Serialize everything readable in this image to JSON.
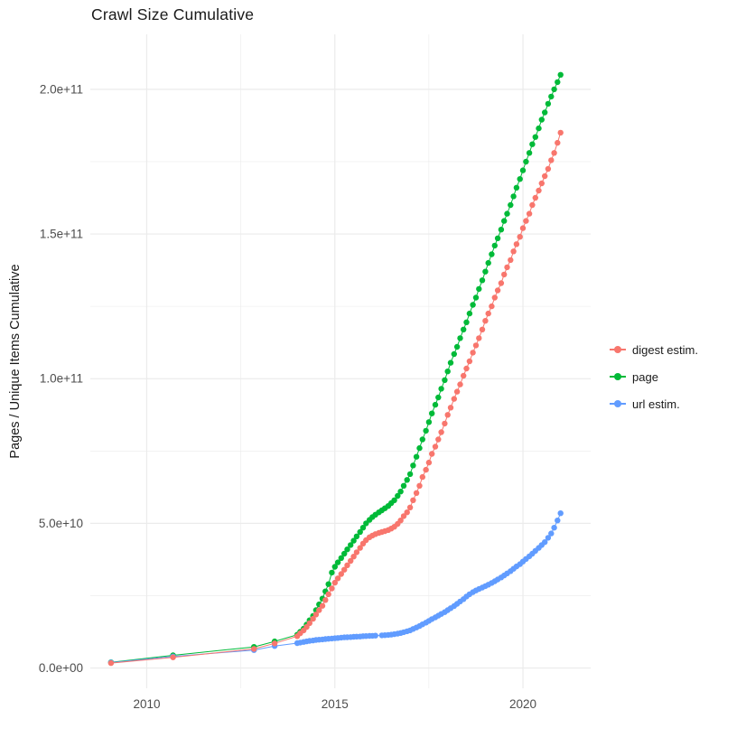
{
  "title": "Crawl Size Cumulative",
  "axes": {
    "y_label": "Pages / Unique Items Cumulative",
    "x_tick_color": "#4d4d4d",
    "grid_color": "#ebebeb"
  },
  "legend": {
    "items": [
      {
        "label": "digest estim.",
        "color": "#F8766D"
      },
      {
        "label": "page",
        "color": "#00BA38"
      },
      {
        "label": "url estim.",
        "color": "#619CFF"
      }
    ]
  },
  "chart_data": {
    "type": "scatter",
    "lines": true,
    "title": "Crawl Size Cumulative",
    "xlabel": "",
    "ylabel": "Pages / Unique Items Cumulative",
    "legend_position": "right",
    "grid": true,
    "y_unit_note": "y values stored in billions (1e9 items)",
    "x_domain": [
      2008.5,
      2021.8
    ],
    "y_domain_e9": [
      -7,
      219
    ],
    "x_ticks": [
      {
        "v": 2010,
        "label": "2010"
      },
      {
        "v": 2015,
        "label": "2015"
      },
      {
        "v": 2020,
        "label": "2020"
      }
    ],
    "x_minor": [
      2012.5,
      2017.5
    ],
    "y_ticks": [
      {
        "v": 0,
        "label": "0.0e+00"
      },
      {
        "v": 50,
        "label": "5.0e+10"
      },
      {
        "v": 100,
        "label": "1.0e+11"
      },
      {
        "v": 150,
        "label": "1.5e+11"
      },
      {
        "v": 200,
        "label": "2.0e+11"
      }
    ],
    "y_minor_e9": [
      25,
      75,
      125,
      175
    ],
    "series": [
      {
        "name": "page",
        "color": "#00BA38",
        "points_e9": [
          [
            2009.05,
            2.0
          ],
          [
            2010.7,
            4.4
          ],
          [
            2012.85,
            7.3
          ],
          [
            2013.4,
            9.2
          ],
          [
            2014.0,
            11.5
          ],
          [
            2014.08,
            12.5
          ],
          [
            2014.17,
            13.6
          ],
          [
            2014.25,
            15.0
          ],
          [
            2014.33,
            16.5
          ],
          [
            2014.42,
            18.0
          ],
          [
            2014.5,
            20.0
          ],
          [
            2014.58,
            22.0
          ],
          [
            2014.67,
            24.0
          ],
          [
            2014.75,
            26.5
          ],
          [
            2014.83,
            29.0
          ],
          [
            2014.92,
            33.0
          ],
          [
            2015.0,
            35.0
          ],
          [
            2015.08,
            36.5
          ],
          [
            2015.17,
            38.0
          ],
          [
            2015.25,
            39.5
          ],
          [
            2015.33,
            41.0
          ],
          [
            2015.42,
            42.5
          ],
          [
            2015.5,
            44.0
          ],
          [
            2015.58,
            45.5
          ],
          [
            2015.67,
            47.0
          ],
          [
            2015.75,
            48.5
          ],
          [
            2015.83,
            50.0
          ],
          [
            2015.92,
            51.2
          ],
          [
            2016.0,
            52.2
          ],
          [
            2016.08,
            53.0
          ],
          [
            2016.17,
            53.8
          ],
          [
            2016.25,
            54.5
          ],
          [
            2016.33,
            55.2
          ],
          [
            2016.42,
            56.0
          ],
          [
            2016.5,
            57.0
          ],
          [
            2016.58,
            58.0
          ],
          [
            2016.67,
            59.5
          ],
          [
            2016.75,
            61.0
          ],
          [
            2016.83,
            63.0
          ],
          [
            2016.92,
            65.0
          ],
          [
            2017.0,
            67.0
          ],
          [
            2017.08,
            70.0
          ],
          [
            2017.17,
            73.0
          ],
          [
            2017.25,
            76.0
          ],
          [
            2017.33,
            79.0
          ],
          [
            2017.42,
            82.0
          ],
          [
            2017.5,
            85.0
          ],
          [
            2017.58,
            88.0
          ],
          [
            2017.67,
            91.0
          ],
          [
            2017.75,
            93.5
          ],
          [
            2017.83,
            96.5
          ],
          [
            2017.92,
            99.5
          ],
          [
            2018.0,
            102.5
          ],
          [
            2018.08,
            105.5
          ],
          [
            2018.17,
            108.5
          ],
          [
            2018.25,
            111.0
          ],
          [
            2018.33,
            114.0
          ],
          [
            2018.42,
            117.0
          ],
          [
            2018.5,
            119.5
          ],
          [
            2018.58,
            122.5
          ],
          [
            2018.67,
            125.5
          ],
          [
            2018.75,
            128.0
          ],
          [
            2018.83,
            131.0
          ],
          [
            2018.92,
            134.0
          ],
          [
            2019.0,
            137.0
          ],
          [
            2019.08,
            140.0
          ],
          [
            2019.17,
            143.0
          ],
          [
            2019.25,
            146.0
          ],
          [
            2019.33,
            148.5
          ],
          [
            2019.42,
            151.5
          ],
          [
            2019.5,
            154.5
          ],
          [
            2019.58,
            157.0
          ],
          [
            2019.67,
            160.0
          ],
          [
            2019.75,
            163.0
          ],
          [
            2019.83,
            166.0
          ],
          [
            2019.92,
            169.0
          ],
          [
            2020.0,
            172.0
          ],
          [
            2020.08,
            175.0
          ],
          [
            2020.17,
            178.0
          ],
          [
            2020.25,
            181.0
          ],
          [
            2020.33,
            183.5
          ],
          [
            2020.42,
            186.5
          ],
          [
            2020.5,
            189.5
          ],
          [
            2020.58,
            192.0
          ],
          [
            2020.67,
            195.0
          ],
          [
            2020.75,
            197.5
          ],
          [
            2020.83,
            200.0
          ],
          [
            2020.92,
            202.5
          ],
          [
            2021.0,
            205.0
          ]
        ]
      },
      {
        "name": "url estim.",
        "color": "#619CFF",
        "points_e9": [
          [
            2009.05,
            1.9
          ],
          [
            2010.7,
            4.0
          ],
          [
            2012.85,
            6.2
          ],
          [
            2013.4,
            7.6
          ],
          [
            2014.0,
            8.6
          ],
          [
            2014.08,
            8.8
          ],
          [
            2014.17,
            9.0
          ],
          [
            2014.25,
            9.2
          ],
          [
            2014.33,
            9.4
          ],
          [
            2014.42,
            9.5
          ],
          [
            2014.5,
            9.7
          ],
          [
            2014.58,
            9.8
          ],
          [
            2014.67,
            9.9
          ],
          [
            2014.75,
            10.0
          ],
          [
            2014.83,
            10.1
          ],
          [
            2014.92,
            10.2
          ],
          [
            2015.0,
            10.3
          ],
          [
            2015.08,
            10.4
          ],
          [
            2015.17,
            10.5
          ],
          [
            2015.25,
            10.6
          ],
          [
            2015.33,
            10.65
          ],
          [
            2015.42,
            10.7
          ],
          [
            2015.5,
            10.8
          ],
          [
            2015.58,
            10.85
          ],
          [
            2015.67,
            10.9
          ],
          [
            2015.75,
            11.0
          ],
          [
            2015.83,
            11.05
          ],
          [
            2015.92,
            11.1
          ],
          [
            2016.0,
            11.15
          ],
          [
            2016.08,
            11.2
          ],
          [
            2016.25,
            11.3
          ],
          [
            2016.33,
            11.35
          ],
          [
            2016.42,
            11.45
          ],
          [
            2016.5,
            11.55
          ],
          [
            2016.58,
            11.7
          ],
          [
            2016.67,
            11.9
          ],
          [
            2016.75,
            12.1
          ],
          [
            2016.83,
            12.4
          ],
          [
            2016.92,
            12.7
          ],
          [
            2017.0,
            13.0
          ],
          [
            2017.08,
            13.5
          ],
          [
            2017.17,
            14.0
          ],
          [
            2017.25,
            14.5
          ],
          [
            2017.33,
            15.1
          ],
          [
            2017.42,
            15.7
          ],
          [
            2017.5,
            16.3
          ],
          [
            2017.58,
            16.9
          ],
          [
            2017.67,
            17.5
          ],
          [
            2017.75,
            18.1
          ],
          [
            2017.83,
            18.7
          ],
          [
            2017.92,
            19.3
          ],
          [
            2018.0,
            20.0
          ],
          [
            2018.08,
            20.7
          ],
          [
            2018.17,
            21.4
          ],
          [
            2018.25,
            22.2
          ],
          [
            2018.33,
            23.0
          ],
          [
            2018.42,
            23.8
          ],
          [
            2018.5,
            24.7
          ],
          [
            2018.58,
            25.5
          ],
          [
            2018.67,
            26.2
          ],
          [
            2018.75,
            26.8
          ],
          [
            2018.83,
            27.3
          ],
          [
            2018.92,
            27.8
          ],
          [
            2019.0,
            28.3
          ],
          [
            2019.08,
            28.8
          ],
          [
            2019.17,
            29.4
          ],
          [
            2019.25,
            30.0
          ],
          [
            2019.33,
            30.6
          ],
          [
            2019.42,
            31.3
          ],
          [
            2019.5,
            32.0
          ],
          [
            2019.58,
            32.7
          ],
          [
            2019.67,
            33.5
          ],
          [
            2019.75,
            34.3
          ],
          [
            2019.83,
            35.1
          ],
          [
            2019.92,
            35.9
          ],
          [
            2020.0,
            36.8
          ],
          [
            2020.08,
            37.7
          ],
          [
            2020.17,
            38.6
          ],
          [
            2020.25,
            39.5
          ],
          [
            2020.33,
            40.5
          ],
          [
            2020.42,
            41.5
          ],
          [
            2020.5,
            42.5
          ],
          [
            2020.58,
            43.5
          ],
          [
            2020.67,
            45.0
          ],
          [
            2020.75,
            46.5
          ],
          [
            2020.83,
            48.5
          ],
          [
            2020.92,
            51.0
          ],
          [
            2021.0,
            53.5
          ]
        ]
      },
      {
        "name": "digest estim.",
        "color": "#F8766D",
        "points_e9": [
          [
            2009.05,
            1.7
          ],
          [
            2010.7,
            3.7
          ],
          [
            2012.85,
            6.6
          ],
          [
            2013.4,
            8.5
          ],
          [
            2014.0,
            11.0
          ],
          [
            2014.08,
            12.0
          ],
          [
            2014.17,
            13.0
          ],
          [
            2014.25,
            14.2
          ],
          [
            2014.33,
            15.5
          ],
          [
            2014.42,
            17.0
          ],
          [
            2014.5,
            18.5
          ],
          [
            2014.58,
            20.0
          ],
          [
            2014.67,
            21.5
          ],
          [
            2014.75,
            23.5
          ],
          [
            2014.83,
            25.5
          ],
          [
            2014.92,
            27.5
          ],
          [
            2015.0,
            29.5
          ],
          [
            2015.08,
            31.0
          ],
          [
            2015.17,
            32.5
          ],
          [
            2015.25,
            34.0
          ],
          [
            2015.33,
            35.5
          ],
          [
            2015.42,
            37.0
          ],
          [
            2015.5,
            38.5
          ],
          [
            2015.58,
            40.0
          ],
          [
            2015.67,
            41.5
          ],
          [
            2015.75,
            43.0
          ],
          [
            2015.83,
            44.2
          ],
          [
            2015.92,
            45.2
          ],
          [
            2016.0,
            45.8
          ],
          [
            2016.08,
            46.3
          ],
          [
            2016.17,
            46.7
          ],
          [
            2016.25,
            47.0
          ],
          [
            2016.33,
            47.3
          ],
          [
            2016.42,
            47.7
          ],
          [
            2016.5,
            48.2
          ],
          [
            2016.58,
            48.8
          ],
          [
            2016.67,
            49.8
          ],
          [
            2016.75,
            51.0
          ],
          [
            2016.83,
            52.5
          ],
          [
            2016.92,
            53.8
          ],
          [
            2017.0,
            55.5
          ],
          [
            2017.08,
            58.0
          ],
          [
            2017.17,
            60.5
          ],
          [
            2017.25,
            63.0
          ],
          [
            2017.33,
            66.0
          ],
          [
            2017.42,
            68.5
          ],
          [
            2017.5,
            71.0
          ],
          [
            2017.58,
            74.0
          ],
          [
            2017.67,
            76.5
          ],
          [
            2017.75,
            79.0
          ],
          [
            2017.83,
            81.5
          ],
          [
            2017.92,
            84.5
          ],
          [
            2018.0,
            87.5
          ],
          [
            2018.08,
            90.0
          ],
          [
            2018.17,
            93.0
          ],
          [
            2018.25,
            95.5
          ],
          [
            2018.33,
            98.0
          ],
          [
            2018.42,
            101.0
          ],
          [
            2018.5,
            103.5
          ],
          [
            2018.58,
            106.0
          ],
          [
            2018.67,
            109.0
          ],
          [
            2018.75,
            111.5
          ],
          [
            2018.83,
            114.0
          ],
          [
            2018.92,
            117.0
          ],
          [
            2019.0,
            120.0
          ],
          [
            2019.08,
            122.5
          ],
          [
            2019.17,
            125.0
          ],
          [
            2019.25,
            128.0
          ],
          [
            2019.33,
            130.5
          ],
          [
            2019.42,
            133.0
          ],
          [
            2019.5,
            136.0
          ],
          [
            2019.58,
            138.5
          ],
          [
            2019.67,
            141.0
          ],
          [
            2019.75,
            144.0
          ],
          [
            2019.83,
            146.5
          ],
          [
            2019.92,
            149.0
          ],
          [
            2020.0,
            152.0
          ],
          [
            2020.08,
            154.5
          ],
          [
            2020.17,
            157.0
          ],
          [
            2020.25,
            160.0
          ],
          [
            2020.33,
            162.5
          ],
          [
            2020.42,
            165.0
          ],
          [
            2020.5,
            167.5
          ],
          [
            2020.58,
            170.0
          ],
          [
            2020.67,
            172.5
          ],
          [
            2020.75,
            175.5
          ],
          [
            2020.83,
            178.0
          ],
          [
            2020.92,
            181.5
          ],
          [
            2021.0,
            185.0
          ]
        ]
      }
    ]
  }
}
